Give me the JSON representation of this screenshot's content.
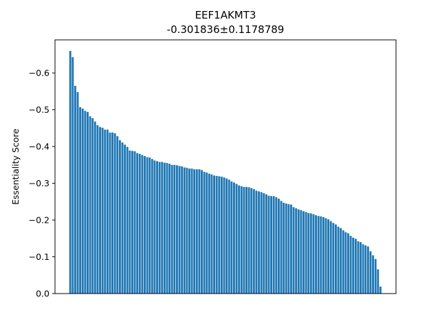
{
  "chart_data": {
    "type": "bar",
    "title": "EEF1AKMT3",
    "subtitle": "-0.301836±0.1178789",
    "xlabel": "",
    "ylabel": "Essentiality Score",
    "ylim": [
      0.0,
      -0.69
    ],
    "y_inverted": true,
    "yticks": [
      0.0,
      -0.1,
      -0.2,
      -0.3,
      -0.4,
      -0.5,
      -0.6
    ],
    "ytick_labels": [
      "0.0",
      "−0.1",
      "−0.2",
      "−0.3",
      "−0.4",
      "−0.5",
      "−0.6"
    ],
    "grid": false,
    "legend": "none",
    "bar_color": "#1f77b4",
    "values": [
      -0.66,
      -0.643,
      -0.565,
      -0.548,
      -0.507,
      -0.503,
      -0.497,
      -0.494,
      -0.482,
      -0.477,
      -0.468,
      -0.458,
      -0.453,
      -0.451,
      -0.446,
      -0.446,
      -0.438,
      -0.438,
      -0.436,
      -0.428,
      -0.417,
      -0.411,
      -0.405,
      -0.399,
      -0.389,
      -0.388,
      -0.387,
      -0.382,
      -0.38,
      -0.377,
      -0.374,
      -0.371,
      -0.37,
      -0.366,
      -0.362,
      -0.36,
      -0.358,
      -0.358,
      -0.356,
      -0.355,
      -0.353,
      -0.35,
      -0.35,
      -0.349,
      -0.347,
      -0.346,
      -0.343,
      -0.342,
      -0.34,
      -0.34,
      -0.338,
      -0.338,
      -0.338,
      -0.336,
      -0.331,
      -0.329,
      -0.326,
      -0.324,
      -0.321,
      -0.32,
      -0.319,
      -0.318,
      -0.316,
      -0.313,
      -0.31,
      -0.305,
      -0.302,
      -0.298,
      -0.294,
      -0.292,
      -0.29,
      -0.29,
      -0.289,
      -0.287,
      -0.284,
      -0.28,
      -0.278,
      -0.276,
      -0.273,
      -0.27,
      -0.266,
      -0.265,
      -0.265,
      -0.262,
      -0.258,
      -0.252,
      -0.247,
      -0.245,
      -0.243,
      -0.242,
      -0.235,
      -0.232,
      -0.229,
      -0.227,
      -0.224,
      -0.222,
      -0.219,
      -0.218,
      -0.216,
      -0.213,
      -0.211,
      -0.21,
      -0.208,
      -0.205,
      -0.202,
      -0.197,
      -0.192,
      -0.188,
      -0.182,
      -0.178,
      -0.172,
      -0.167,
      -0.164,
      -0.157,
      -0.152,
      -0.149,
      -0.142,
      -0.14,
      -0.134,
      -0.131,
      -0.128,
      -0.115,
      -0.104,
      -0.094,
      -0.066,
      -0.019
    ]
  }
}
